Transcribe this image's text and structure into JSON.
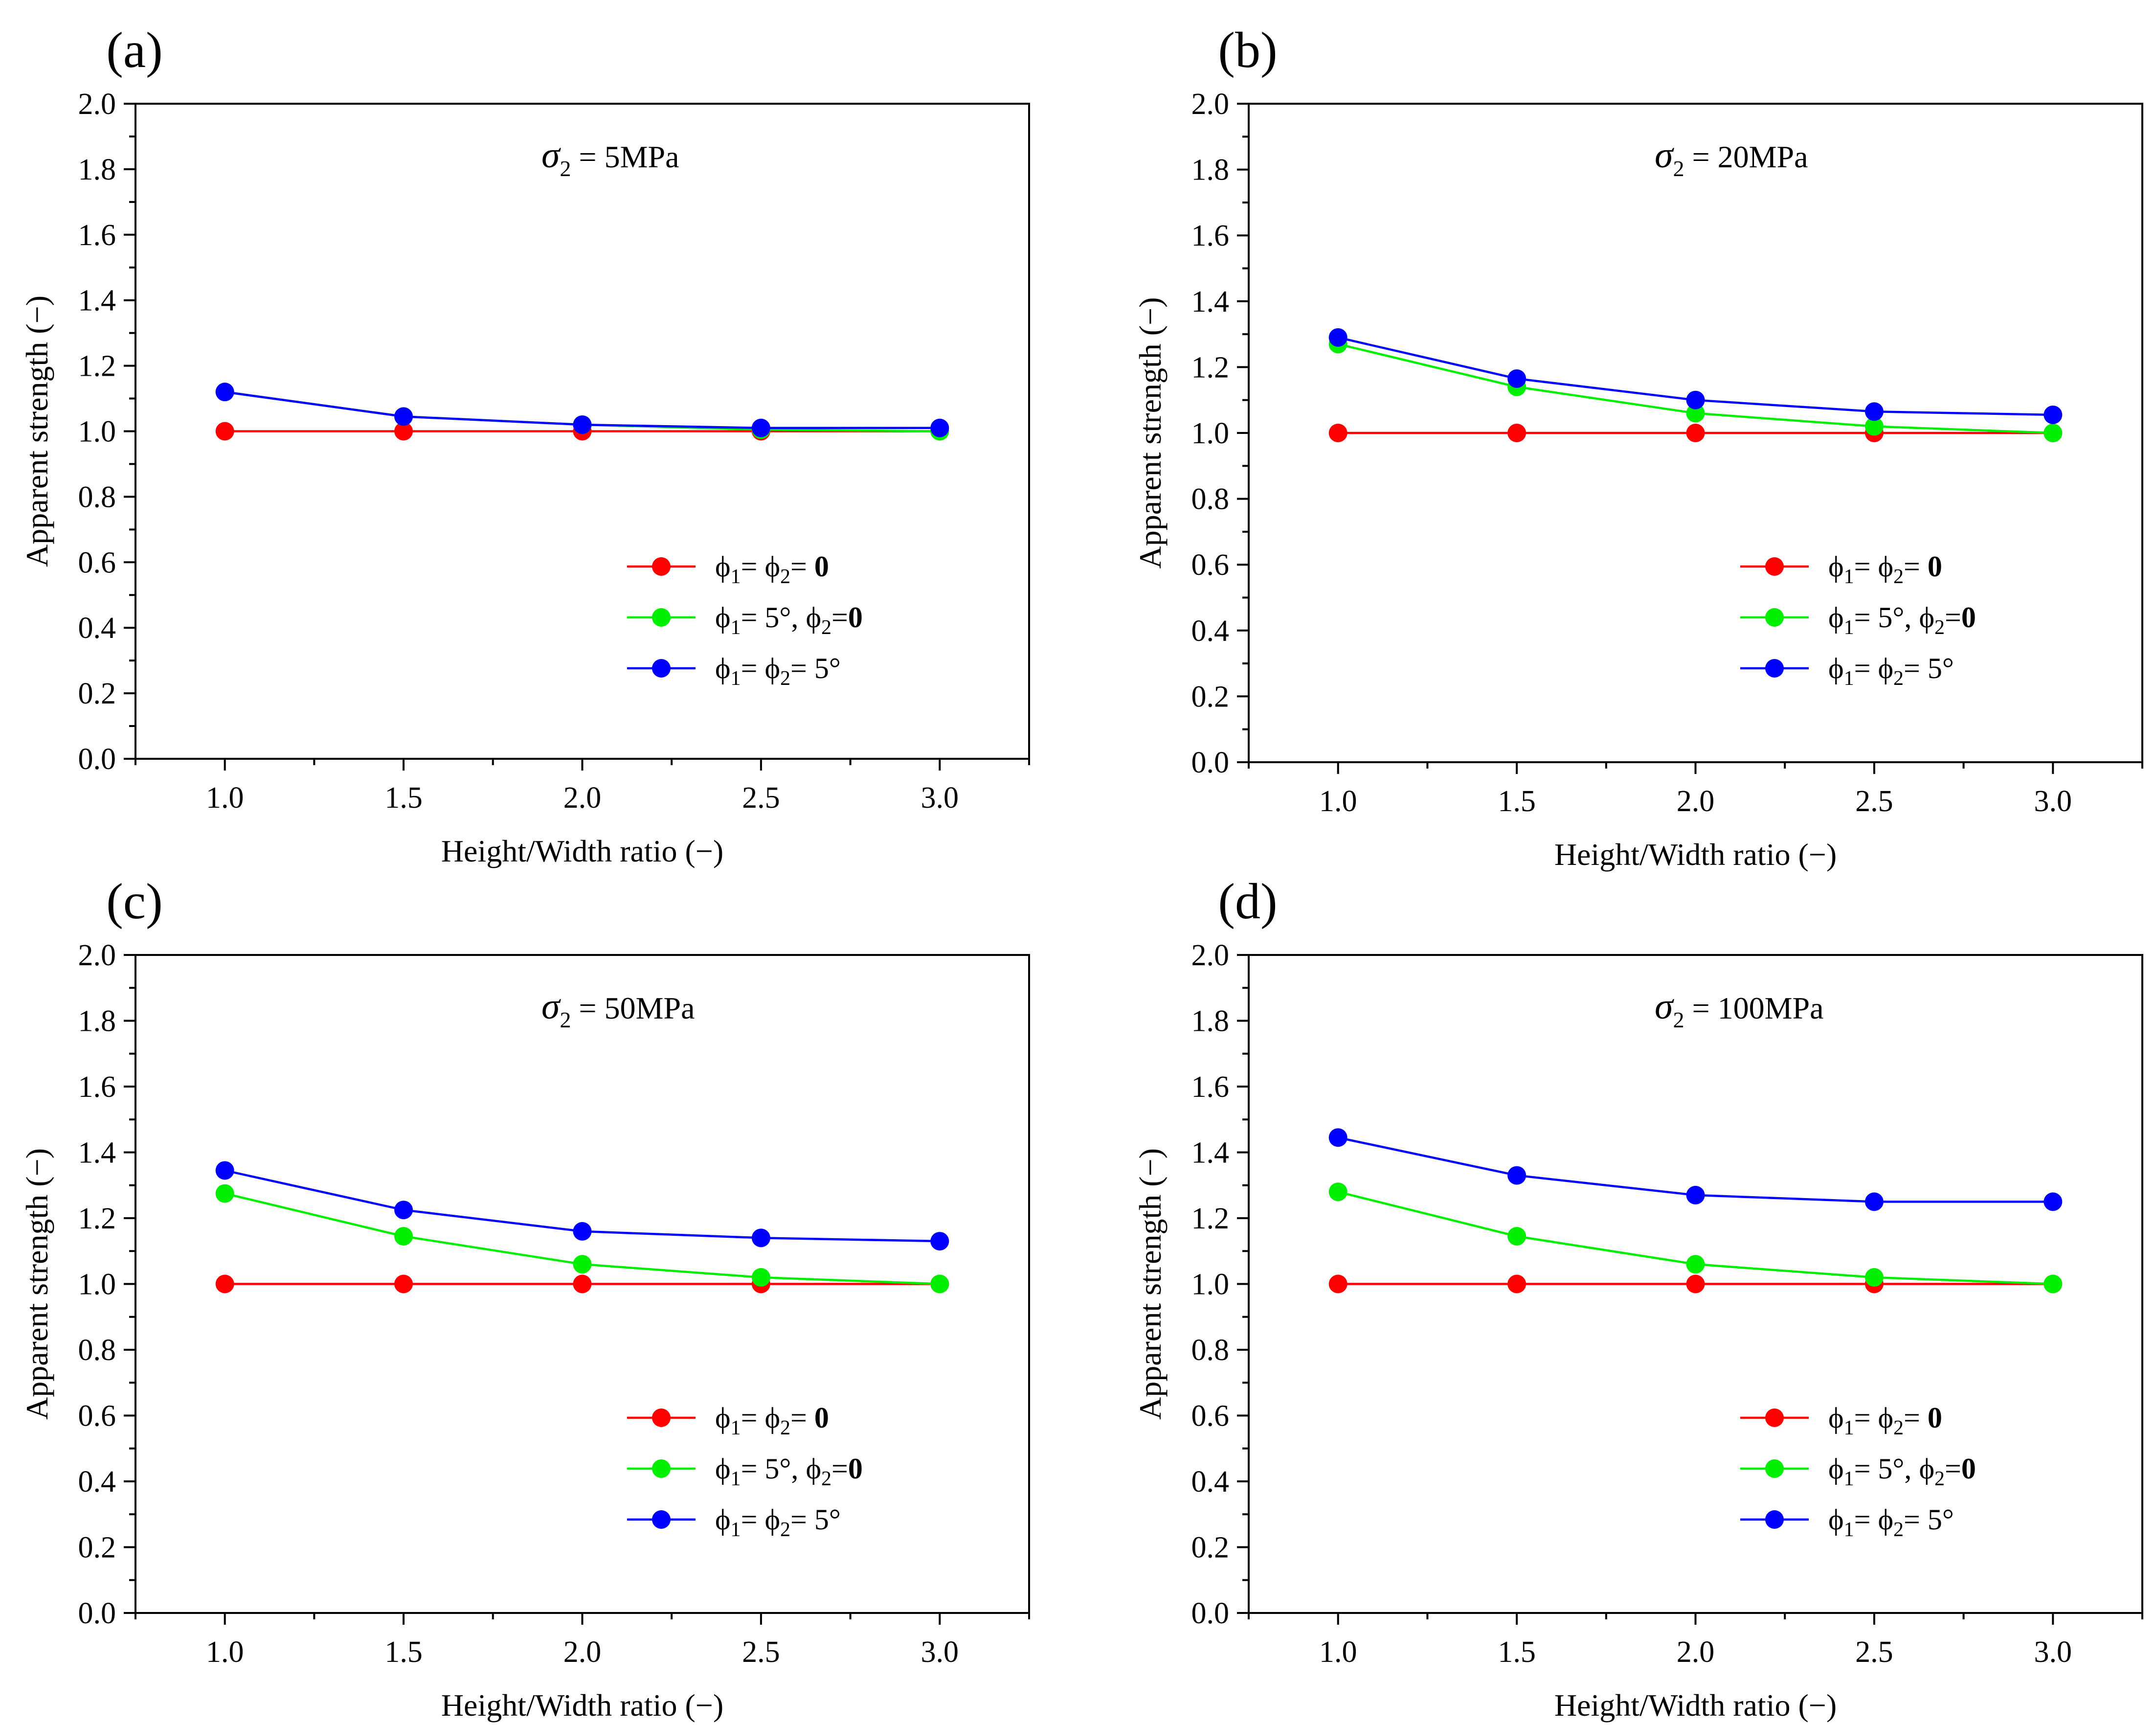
{
  "colors": {
    "s1": "#ff0000",
    "s2": "#00ee00",
    "s3": "#0000ff",
    "axis": "#000000"
  },
  "chart_data": [
    {
      "type": "line",
      "panel_label": "(a)",
      "condition": {
        "symbol": "σ",
        "sub": "2",
        "text": "= 5MPa"
      },
      "xlabel": "Height/Width ratio (−)",
      "ylabel": "Apparent strength (−)",
      "xlim": [
        0.75,
        3.25
      ],
      "ylim": [
        0.0,
        2.0
      ],
      "xticks": [
        "1.0",
        "1.5",
        "2.0",
        "2.5",
        "3.0"
      ],
      "yticks": [
        "0.0",
        "0.2",
        "0.4",
        "0.6",
        "0.8",
        "1.0",
        "1.2",
        "1.4",
        "1.6",
        "1.8",
        "2.0"
      ],
      "x": [
        1.0,
        1.5,
        2.0,
        2.5,
        3.0
      ],
      "series": [
        {
          "name": "ϕ1= ϕ2= 0",
          "color": "#ff0000",
          "values": [
            1.0,
            1.0,
            1.0,
            1.0,
            1.0
          ]
        },
        {
          "name": "ϕ1= 5°, ϕ2=0",
          "color": "#00ee00",
          "values": [
            1.12,
            1.045,
            1.02,
            1.005,
            1.0
          ]
        },
        {
          "name": "ϕ1= ϕ2= 5°",
          "color": "#0000ff",
          "values": [
            1.12,
            1.045,
            1.02,
            1.01,
            1.01
          ]
        }
      ],
      "legend": [
        {
          "p1": "ϕ",
          "s1": "1",
          "mid": "= ",
          "p2": "ϕ",
          "s2": "2",
          "tail": "= ",
          "b": "0"
        },
        {
          "p1": "ϕ",
          "s1": "1",
          "mid": "= 5°, ",
          "p2": "ϕ",
          "s2": "2",
          "tail": "=",
          "b": "0"
        },
        {
          "p1": "ϕ",
          "s1": "1",
          "mid": "= ",
          "p2": "ϕ",
          "s2": "2",
          "tail": "= 5°",
          "b": ""
        }
      ]
    },
    {
      "type": "line",
      "panel_label": "(b)",
      "condition": {
        "symbol": "σ",
        "sub": "2",
        "text": "= 20MPa"
      },
      "xlabel": "Height/Width ratio (−)",
      "ylabel": "Apparent strength (−)",
      "xlim": [
        0.75,
        3.25
      ],
      "ylim": [
        0.0,
        2.0
      ],
      "xticks": [
        "1.0",
        "1.5",
        "2.0",
        "2.5",
        "3.0"
      ],
      "yticks": [
        "0.0",
        "0.2",
        "0.4",
        "0.6",
        "0.8",
        "1.0",
        "1.2",
        "1.4",
        "1.6",
        "1.8",
        "2.0"
      ],
      "x": [
        1.0,
        1.5,
        2.0,
        2.5,
        3.0
      ],
      "series": [
        {
          "name": "ϕ1= ϕ2= 0",
          "color": "#ff0000",
          "values": [
            1.0,
            1.0,
            1.0,
            1.0,
            1.0
          ]
        },
        {
          "name": "ϕ1= 5°, ϕ2=0",
          "color": "#00ee00",
          "values": [
            1.27,
            1.14,
            1.06,
            1.02,
            1.0
          ]
        },
        {
          "name": "ϕ1= ϕ2= 5°",
          "color": "#0000ff",
          "values": [
            1.29,
            1.165,
            1.1,
            1.065,
            1.055
          ]
        }
      ],
      "legend": [
        {
          "p1": "ϕ",
          "s1": "1",
          "mid": "= ",
          "p2": "ϕ",
          "s2": "2",
          "tail": "= ",
          "b": "0"
        },
        {
          "p1": "ϕ",
          "s1": "1",
          "mid": "= 5°, ",
          "p2": "ϕ",
          "s2": "2",
          "tail": "=",
          "b": "0"
        },
        {
          "p1": "ϕ",
          "s1": "1",
          "mid": "= ",
          "p2": "ϕ",
          "s2": "2",
          "tail": "= 5°",
          "b": ""
        }
      ]
    },
    {
      "type": "line",
      "panel_label": "(c)",
      "condition": {
        "symbol": "σ",
        "sub": "2",
        "text": "= 50MPa"
      },
      "xlabel": "Height/Width ratio (−)",
      "ylabel": "Apparent strength (−)",
      "xlim": [
        0.75,
        3.25
      ],
      "ylim": [
        0.0,
        2.0
      ],
      "xticks": [
        "1.0",
        "1.5",
        "2.0",
        "2.5",
        "3.0"
      ],
      "yticks": [
        "0.0",
        "0.2",
        "0.4",
        "0.6",
        "0.8",
        "1.0",
        "1.2",
        "1.4",
        "1.6",
        "1.8",
        "2.0"
      ],
      "x": [
        1.0,
        1.5,
        2.0,
        2.5,
        3.0
      ],
      "series": [
        {
          "name": "ϕ1= ϕ2= 0",
          "color": "#ff0000",
          "values": [
            1.0,
            1.0,
            1.0,
            1.0,
            1.0
          ]
        },
        {
          "name": "ϕ1= 5°, ϕ2=0",
          "color": "#00ee00",
          "values": [
            1.275,
            1.145,
            1.06,
            1.02,
            1.0
          ]
        },
        {
          "name": "ϕ1= ϕ2= 5°",
          "color": "#0000ff",
          "values": [
            1.345,
            1.225,
            1.16,
            1.14,
            1.13
          ]
        }
      ],
      "legend": [
        {
          "p1": "ϕ",
          "s1": "1",
          "mid": "= ",
          "p2": "ϕ",
          "s2": "2",
          "tail": "= ",
          "b": "0"
        },
        {
          "p1": "ϕ",
          "s1": "1",
          "mid": "= 5°, ",
          "p2": "ϕ",
          "s2": "2",
          "tail": "=",
          "b": "0"
        },
        {
          "p1": "ϕ",
          "s1": "1",
          "mid": "= ",
          "p2": "ϕ",
          "s2": "2",
          "tail": "= 5°",
          "b": ""
        }
      ]
    },
    {
      "type": "line",
      "panel_label": "(d)",
      "condition": {
        "symbol": "σ",
        "sub": "2",
        "text": "= 100MPa"
      },
      "xlabel": "Height/Width ratio (−)",
      "ylabel": "Apparent strength (−)",
      "xlim": [
        0.75,
        3.25
      ],
      "ylim": [
        0.0,
        2.0
      ],
      "xticks": [
        "1.0",
        "1.5",
        "2.0",
        "2.5",
        "3.0"
      ],
      "yticks": [
        "0.0",
        "0.2",
        "0.4",
        "0.6",
        "0.8",
        "1.0",
        "1.2",
        "1.4",
        "1.6",
        "1.8",
        "2.0"
      ],
      "x": [
        1.0,
        1.5,
        2.0,
        2.5,
        3.0
      ],
      "series": [
        {
          "name": "ϕ1= ϕ2= 0",
          "color": "#ff0000",
          "values": [
            1.0,
            1.0,
            1.0,
            1.0,
            1.0
          ]
        },
        {
          "name": "ϕ1= 5°, ϕ2=0",
          "color": "#00ee00",
          "values": [
            1.28,
            1.145,
            1.06,
            1.02,
            1.0
          ]
        },
        {
          "name": "ϕ1= ϕ2= 5°",
          "color": "#0000ff",
          "values": [
            1.445,
            1.33,
            1.27,
            1.25,
            1.25
          ]
        }
      ],
      "legend": [
        {
          "p1": "ϕ",
          "s1": "1",
          "mid": "= ",
          "p2": "ϕ",
          "s2": "2",
          "tail": "= ",
          "b": "0"
        },
        {
          "p1": "ϕ",
          "s1": "1",
          "mid": "= 5°, ",
          "p2": "ϕ",
          "s2": "2",
          "tail": "=",
          "b": "0"
        },
        {
          "p1": "ϕ",
          "s1": "1",
          "mid": "= ",
          "p2": "ϕ",
          "s2": "2",
          "tail": "= 5°",
          "b": ""
        }
      ]
    }
  ]
}
